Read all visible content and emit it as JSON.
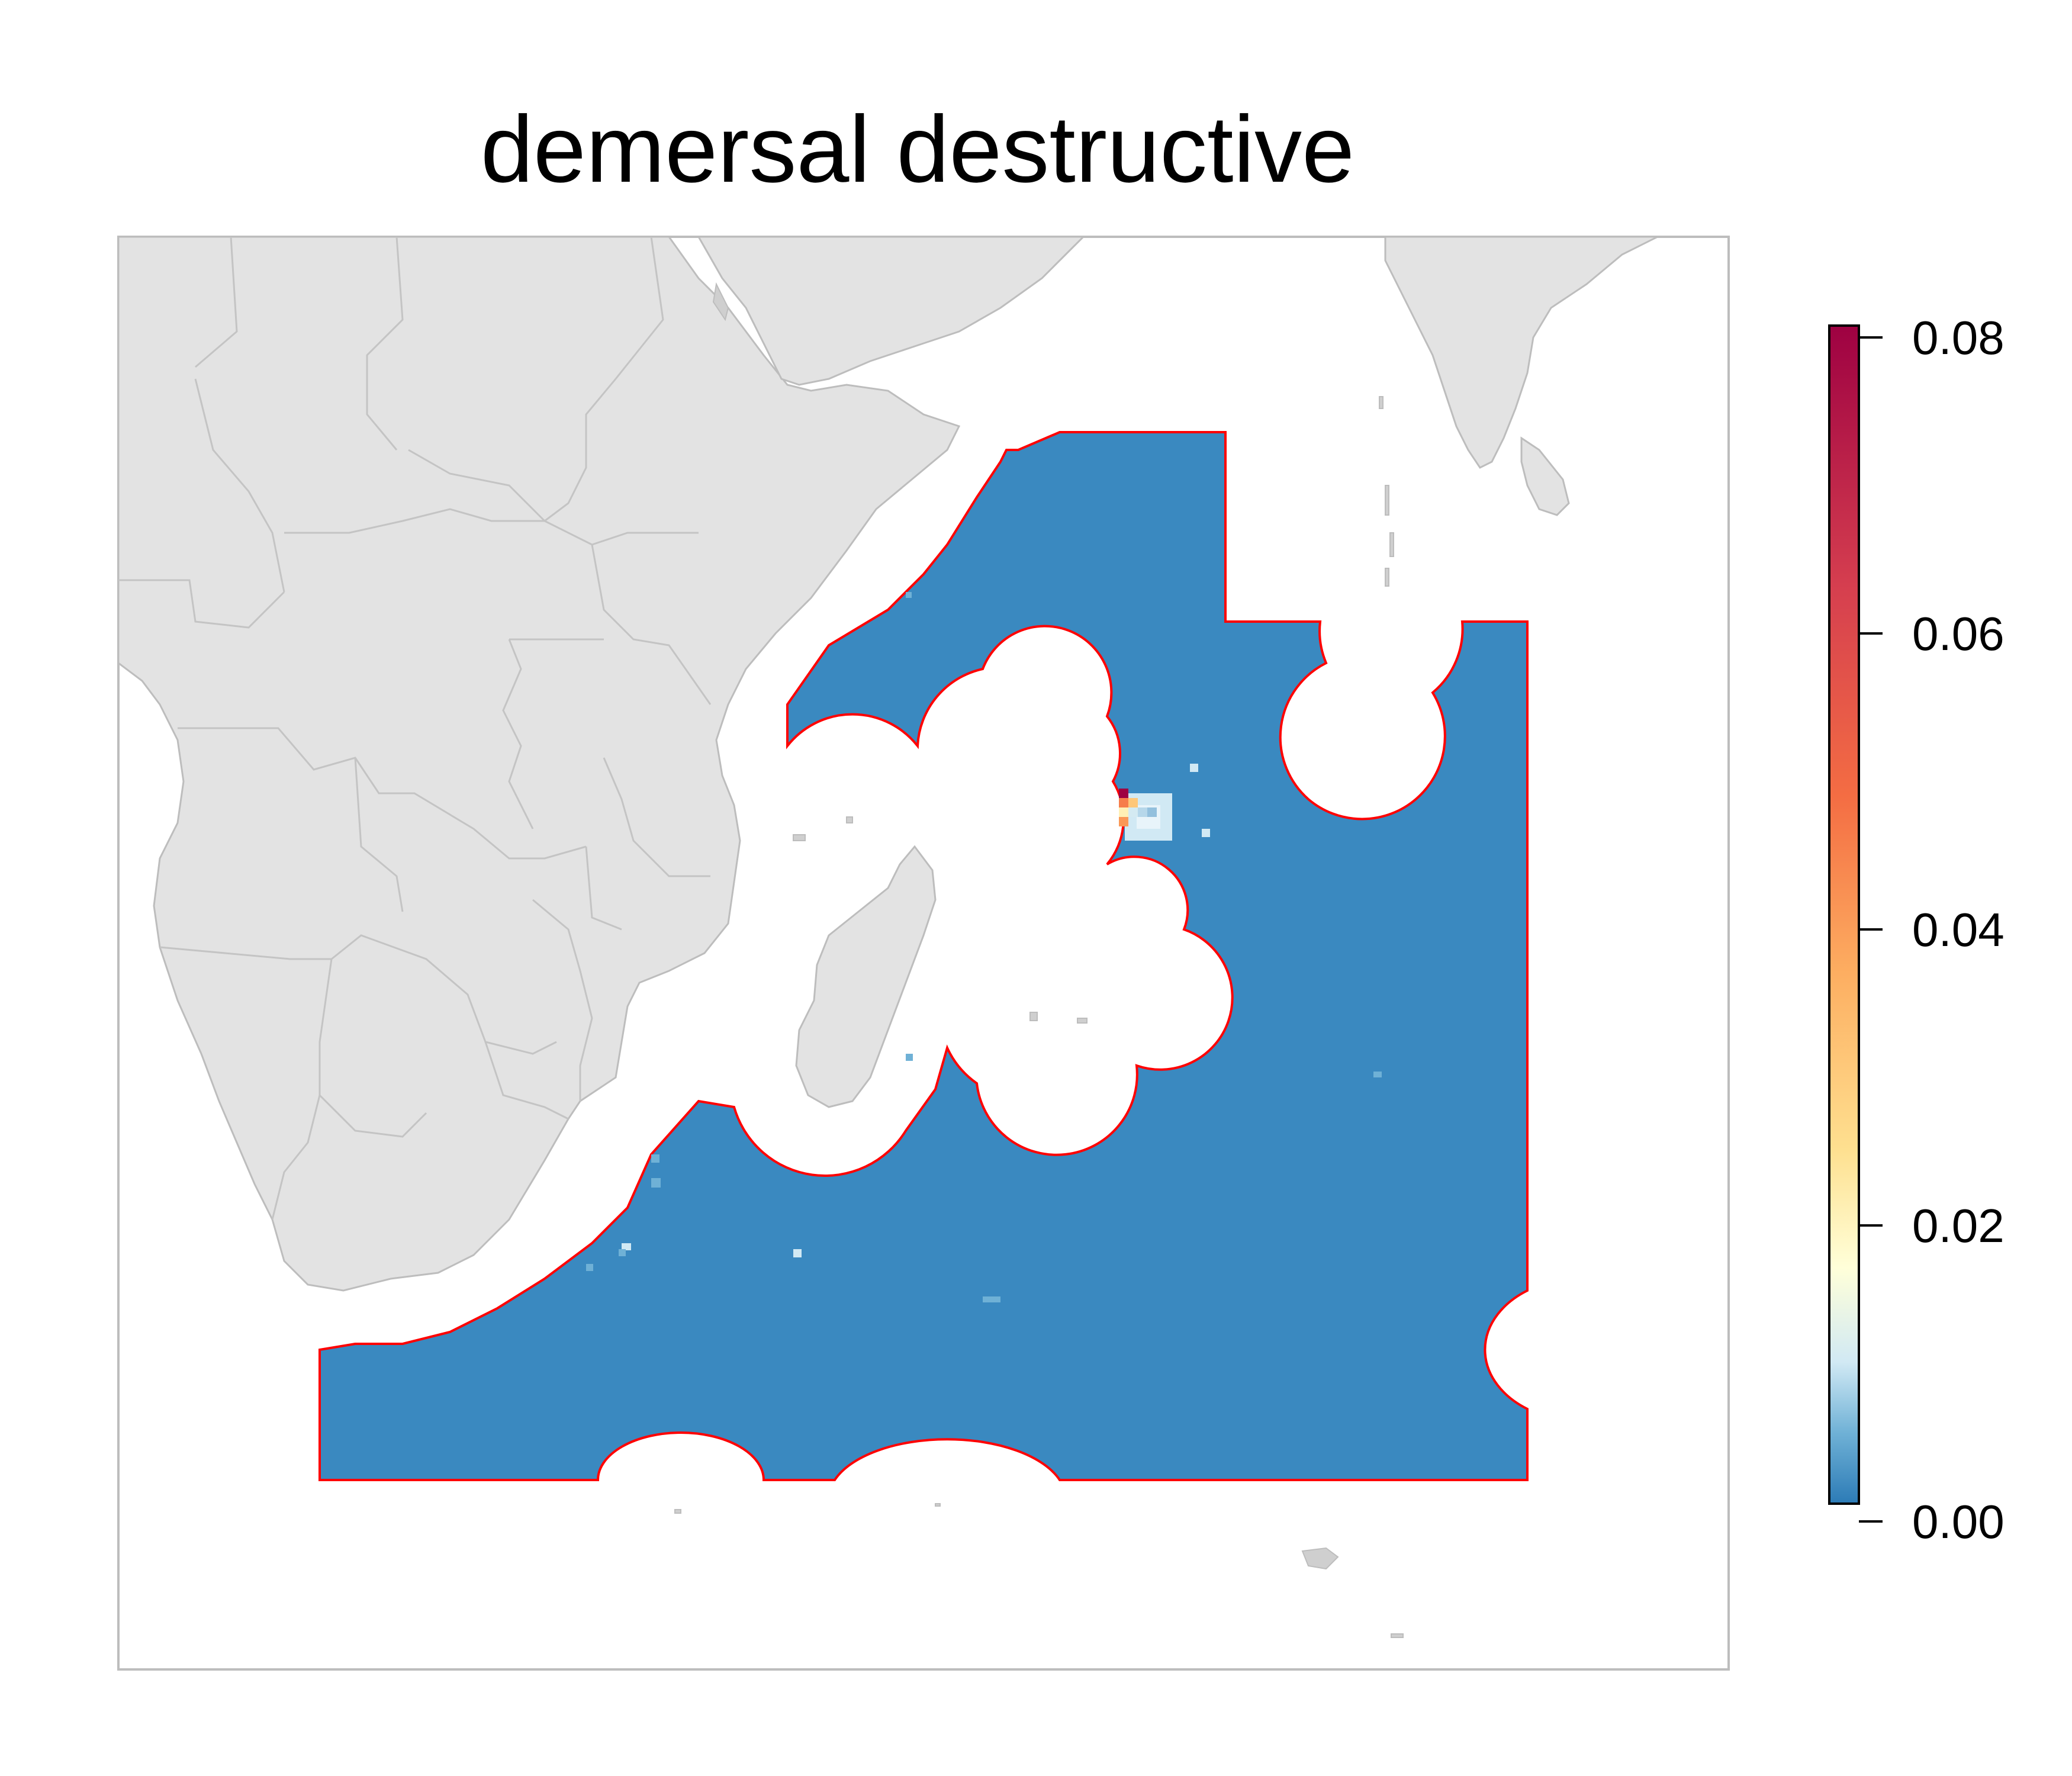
{
  "title": "demersal destructive",
  "colors": {
    "land": "#e3e3e3",
    "land_border": "#bdbdbd",
    "ocean_fill": "#3a89c0",
    "zone_outline": "#ff0000",
    "frame": "#bdbdbd"
  },
  "legend": {
    "labels": [
      "0.00",
      "0.02",
      "0.04",
      "0.06",
      "0.08"
    ],
    "min": 0,
    "max": 0.08,
    "color_stops": [
      "#2c7bb6",
      "#abd9e9",
      "#ffffbf",
      "#fdae61",
      "#f46d43",
      "#d7191c",
      "#a50026",
      "#9e0142"
    ]
  },
  "chart_data": {
    "type": "heatmap",
    "title": "demersal destructive",
    "scale": {
      "min": 0.0,
      "max": 0.08,
      "ticks": [
        0.0,
        0.02,
        0.04,
        0.06,
        0.08
      ],
      "placement": "right"
    },
    "hotspot_cells": [
      {
        "lon_idx": 0,
        "lat_idx": 0,
        "value": 0.08
      },
      {
        "lon_idx": 0,
        "lat_idx": 1,
        "value": 0.045
      },
      {
        "lon_idx": 0,
        "lat_idx": 2,
        "value": 0.02
      },
      {
        "lon_idx": 1,
        "lat_idx": 1,
        "value": 0.03
      },
      {
        "lon_idx": 1,
        "lat_idx": 2,
        "value": 0.01
      },
      {
        "lon_idx": 2,
        "lat_idx": 2,
        "value": 0.008
      },
      {
        "lon_idx": 3,
        "lat_idx": 2,
        "value": 0.006
      },
      {
        "lon_idx": 0,
        "lat_idx": 3,
        "value": 0.04
      }
    ]
  }
}
